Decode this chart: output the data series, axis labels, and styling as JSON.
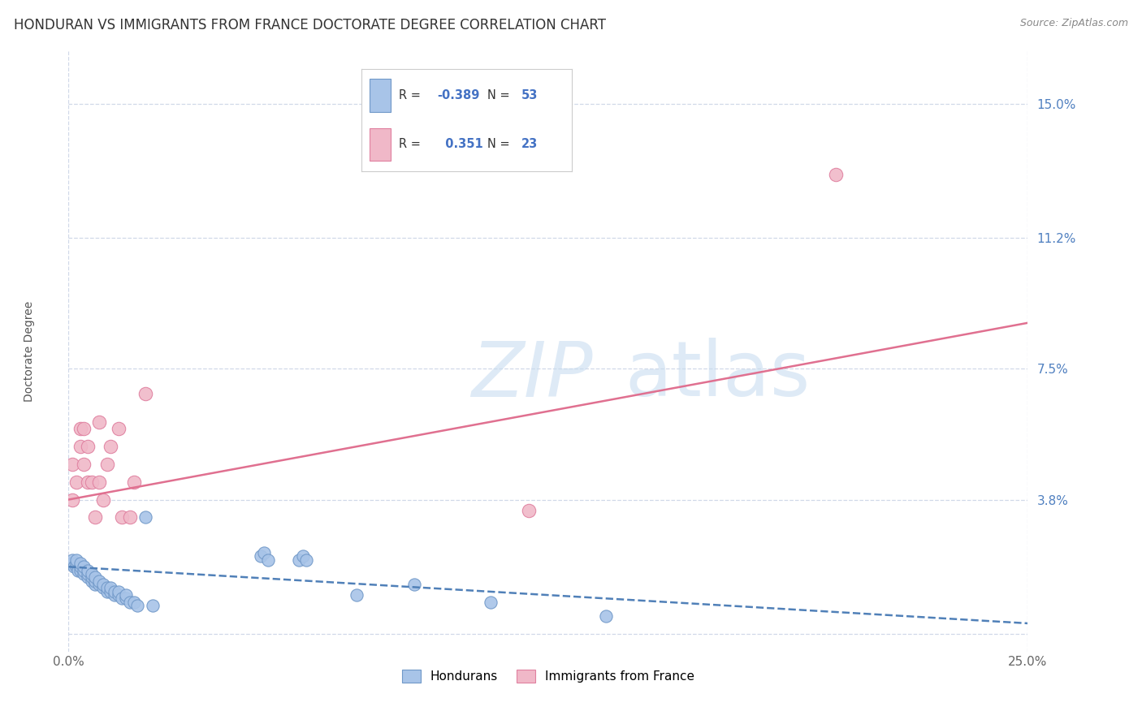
{
  "title": "HONDURAN VS IMMIGRANTS FROM FRANCE DOCTORATE DEGREE CORRELATION CHART",
  "source": "Source: ZipAtlas.com",
  "ylabel": "Doctorate Degree",
  "xlim": [
    0.0,
    0.25
  ],
  "ylim": [
    -0.005,
    0.165
  ],
  "plot_ylim": [
    -0.005,
    0.165
  ],
  "ytick_vals": [
    0.0,
    0.038,
    0.075,
    0.112,
    0.15
  ],
  "ytick_labels": [
    "",
    "3.8%",
    "7.5%",
    "11.2%",
    "15.0%"
  ],
  "xtick_vals": [
    0.0,
    0.25
  ],
  "xtick_labels": [
    "0.0%",
    "25.0%"
  ],
  "background_color": "#ffffff",
  "grid_color": "#d0d8e8",
  "honduran_color": "#a8c4e8",
  "france_color": "#f0b8c8",
  "honduran_edge_color": "#7098c8",
  "france_edge_color": "#e080a0",
  "honduran_line_color": "#5080b8",
  "france_line_color": "#e07090",
  "r_honduran": -0.389,
  "n_honduran": 53,
  "r_france": 0.351,
  "n_france": 23,
  "watermark_zip": "ZIP",
  "watermark_atlas": "atlas",
  "honduran_scatter_x": [
    0.0005,
    0.001,
    0.001,
    0.0015,
    0.002,
    0.002,
    0.002,
    0.0025,
    0.003,
    0.003,
    0.003,
    0.004,
    0.004,
    0.004,
    0.005,
    0.005,
    0.005,
    0.006,
    0.006,
    0.006,
    0.007,
    0.007,
    0.007,
    0.008,
    0.008,
    0.009,
    0.009,
    0.01,
    0.01,
    0.011,
    0.011,
    0.012,
    0.012,
    0.013,
    0.013,
    0.014,
    0.015,
    0.015,
    0.016,
    0.017,
    0.018,
    0.02,
    0.022,
    0.05,
    0.051,
    0.052,
    0.06,
    0.061,
    0.062,
    0.075,
    0.09,
    0.11,
    0.14
  ],
  "honduran_scatter_y": [
    0.02,
    0.02,
    0.021,
    0.019,
    0.019,
    0.02,
    0.021,
    0.018,
    0.018,
    0.019,
    0.02,
    0.017,
    0.018,
    0.019,
    0.016,
    0.017,
    0.018,
    0.015,
    0.016,
    0.017,
    0.014,
    0.015,
    0.016,
    0.014,
    0.015,
    0.013,
    0.014,
    0.012,
    0.013,
    0.012,
    0.013,
    0.011,
    0.012,
    0.011,
    0.012,
    0.01,
    0.01,
    0.011,
    0.009,
    0.009,
    0.008,
    0.033,
    0.008,
    0.022,
    0.023,
    0.021,
    0.021,
    0.022,
    0.021,
    0.011,
    0.014,
    0.009,
    0.005
  ],
  "france_scatter_x": [
    0.001,
    0.001,
    0.002,
    0.003,
    0.003,
    0.004,
    0.004,
    0.005,
    0.005,
    0.006,
    0.007,
    0.008,
    0.008,
    0.009,
    0.01,
    0.011,
    0.013,
    0.014,
    0.016,
    0.017,
    0.02,
    0.12,
    0.2
  ],
  "france_scatter_y": [
    0.038,
    0.048,
    0.043,
    0.053,
    0.058,
    0.048,
    0.058,
    0.043,
    0.053,
    0.043,
    0.033,
    0.043,
    0.06,
    0.038,
    0.048,
    0.053,
    0.058,
    0.033,
    0.033,
    0.043,
    0.068,
    0.035,
    0.13
  ],
  "honduran_line_x0": 0.0,
  "honduran_line_x1": 0.25,
  "honduran_line_y0": 0.019,
  "honduran_line_y1": 0.003,
  "france_line_x0": 0.0,
  "france_line_x1": 0.25,
  "france_line_y0": 0.038,
  "france_line_y1": 0.088,
  "title_fontsize": 12,
  "axis_label_fontsize": 10,
  "tick_fontsize": 11,
  "scatter_size_honduran": 120,
  "scatter_size_france": 140,
  "line_width": 1.8
}
